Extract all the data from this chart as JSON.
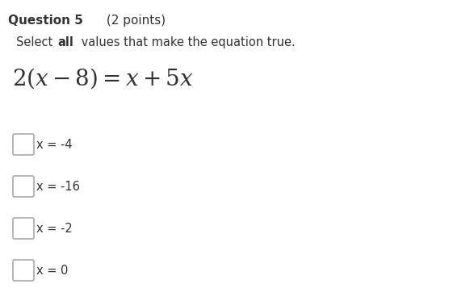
{
  "background_color": "#ffffff",
  "text_color": "#333333",
  "checkbox_color": "#aaaaaa",
  "title_bold": "Question 5",
  "title_normal": " (2 points)",
  "instruction_parts": [
    {
      "text": "Select ",
      "bold": false
    },
    {
      "text": "all",
      "bold": true
    },
    {
      "text": " values that make the equation true.",
      "bold": false
    }
  ],
  "equation_latex": "$2(x-8)=x+5x$",
  "options": [
    "x = -4",
    "x = -16",
    "x = -2",
    "x = 0"
  ],
  "title_fontsize": 11,
  "body_fontsize": 10.5,
  "equation_fontsize": 20,
  "option_fontsize": 10.5,
  "figsize": [
    5.56,
    3.78
  ],
  "dpi": 100
}
